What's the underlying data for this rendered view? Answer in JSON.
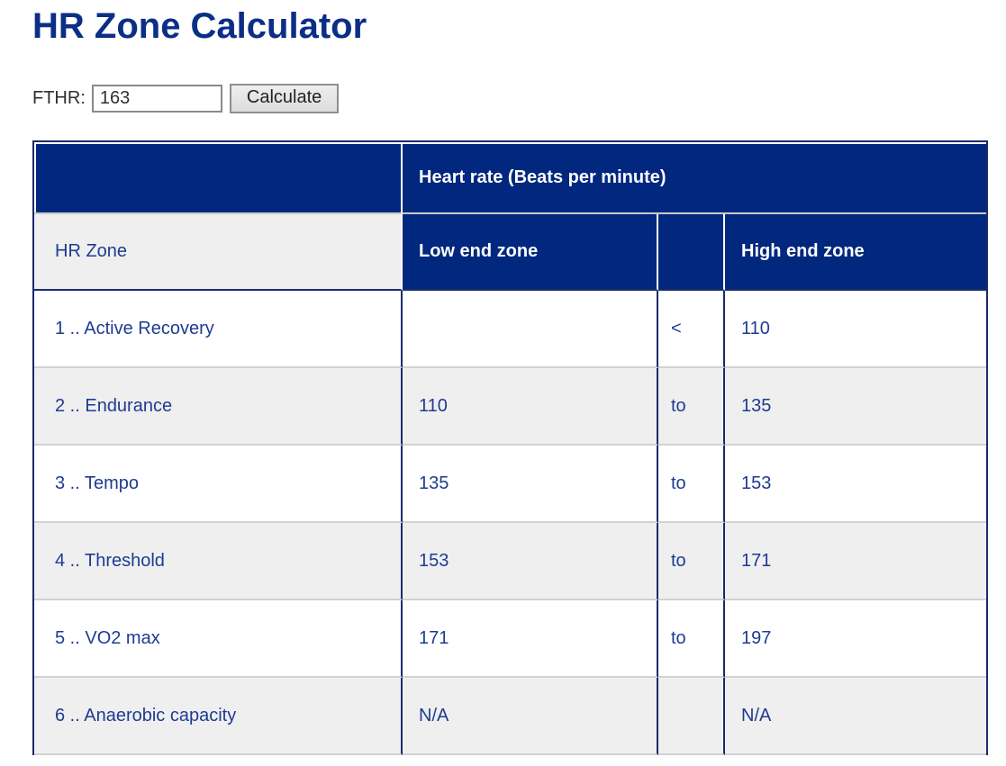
{
  "page": {
    "title": "HR Zone Calculator"
  },
  "form": {
    "label": "FTHR:",
    "value": "163",
    "button_label": "Calculate"
  },
  "table": {
    "header": {
      "group": "Heart rate (Beats per minute)",
      "col_zone": "HR Zone",
      "col_low": "Low end zone",
      "col_sep": "",
      "col_high": "High end zone"
    },
    "rows": [
      {
        "zone": "1 .. Active Recovery",
        "low": "",
        "sep": "<",
        "high": "110"
      },
      {
        "zone": "2 .. Endurance",
        "low": "110",
        "sep": "to",
        "high": "135"
      },
      {
        "zone": "3 .. Tempo",
        "low": "135",
        "sep": "to",
        "high": "153"
      },
      {
        "zone": "4 .. Threshold",
        "low": "153",
        "sep": "to",
        "high": "171"
      },
      {
        "zone": "5 .. VO2 max",
        "low": "171",
        "sep": "to",
        "high": "197"
      },
      {
        "zone": "6 .. Anaerobic capacity",
        "low": "N/A",
        "sep": "",
        "high": "N/A"
      }
    ]
  },
  "colors": {
    "header_navy": "#01277e",
    "title_blue": "#0b2e86",
    "cell_text_navy": "#1e3b92",
    "row_alt_gray": "#efefef",
    "border_navy": "#1a2a6c",
    "border_light": "#d2d2d2"
  }
}
